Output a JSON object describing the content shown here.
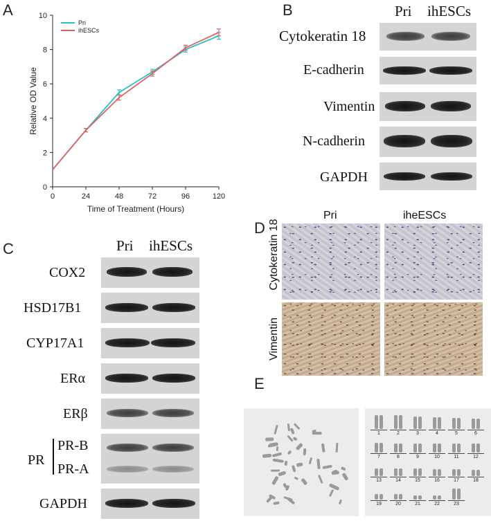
{
  "panels": {
    "a": "A",
    "b": "B",
    "c": "C",
    "d": "D",
    "e": "E"
  },
  "chart_data": {
    "type": "line",
    "xlabel": "Time of Treatment (Hours)",
    "ylabel": "Relative OD Value",
    "x": [
      0,
      24,
      48,
      72,
      96,
      120
    ],
    "xlim": [
      0,
      120
    ],
    "ylim": [
      0,
      10
    ],
    "xticks": [
      "0",
      "24",
      "48",
      "72",
      "96",
      "120"
    ],
    "yticks": [
      "0",
      "2",
      "4",
      "6",
      "8",
      "10"
    ],
    "grid": false,
    "legend_position": "top-left",
    "series": [
      {
        "name": "Pri",
        "color": "#23c3c8",
        "values": [
          1.0,
          3.3,
          5.5,
          6.7,
          8.0,
          8.8
        ],
        "error": [
          0,
          0.1,
          0.15,
          0.15,
          0.15,
          0.2
        ]
      },
      {
        "name": "ihESCs",
        "color": "#e06060",
        "values": [
          1.0,
          3.3,
          5.2,
          6.6,
          8.1,
          9.0
        ],
        "error": [
          0,
          0.1,
          0.15,
          0.15,
          0.15,
          0.2
        ]
      }
    ]
  },
  "blot_b": {
    "columns": [
      "Pri",
      "ihESCs"
    ],
    "rows": [
      "Cytokeratin 18",
      "E-cadherin",
      "Vimentin",
      "N-cadherin",
      "GAPDH"
    ]
  },
  "blot_c": {
    "columns": [
      "Pri",
      "ihESCs"
    ],
    "rows": [
      "COX2",
      "HSD17B1",
      "CYP17A1",
      "ERα",
      "ERβ"
    ],
    "pr_group": "PR",
    "pr_rows": [
      "PR-B",
      "PR-A"
    ],
    "last_row": "GAPDH"
  },
  "micro_d": {
    "columns": [
      "Pri",
      "iheESCs"
    ],
    "rows": [
      "Cytokeratin 18",
      "Vimentin"
    ]
  },
  "karyo_e": {
    "numbers": [
      "1",
      "2",
      "3",
      "4",
      "5",
      "6",
      "7",
      "8",
      "9",
      "10",
      "11",
      "12",
      "13",
      "14",
      "15",
      "16",
      "17",
      "18",
      "19",
      "20",
      "21",
      "22",
      "23"
    ]
  }
}
